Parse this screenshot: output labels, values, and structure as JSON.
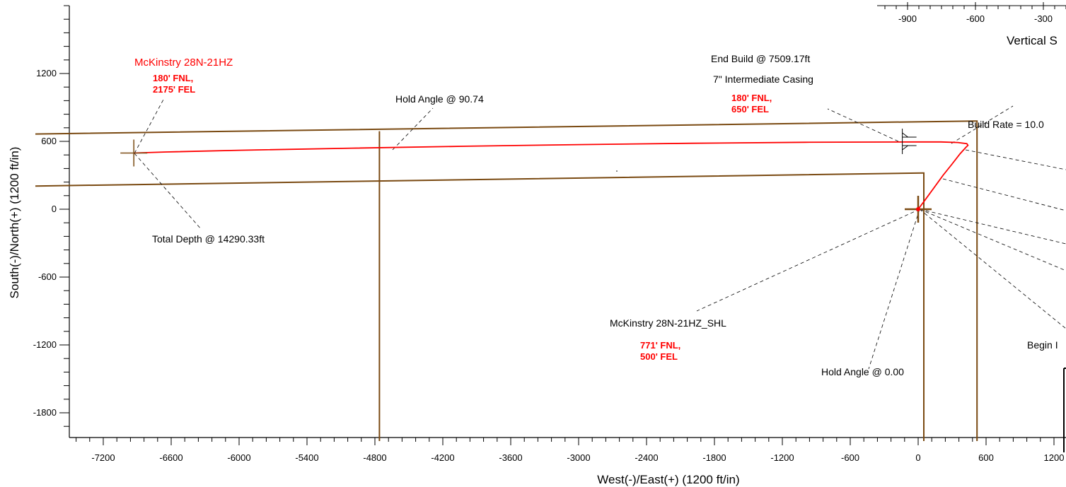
{
  "chart_data": {
    "type": "line",
    "title": "",
    "xlabel": "West(-)/East(+) (1200 ft/in)",
    "ylabel": "South(-)/North(+) (1200 ft/in)",
    "xlim": [
      -7800,
      1250
    ],
    "ylim": [
      -2050,
      1800
    ],
    "x_ticks": [
      -7200,
      -6600,
      -6000,
      -5400,
      -4800,
      -4200,
      -3600,
      -3000,
      -2400,
      -1800,
      -1200,
      -600,
      0,
      600,
      1200
    ],
    "y_ticks": [
      1200,
      600,
      0,
      -600,
      -1200,
      -1800
    ],
    "top_axis": {
      "label": "Vertical S",
      "ticks": [
        "-900",
        "-600",
        "-300"
      ]
    },
    "colors": {
      "wellpath": "#ff0000",
      "boundary": "#7a4a12",
      "target": "#ff0000",
      "text": "#000000"
    },
    "series": [
      {
        "type": "wellpath",
        "x": [
          0,
          60,
          140,
          220,
          300,
          370,
          420,
          440,
          430,
          350,
          200,
          0,
          -1000,
          -2000,
          -3000,
          -4000,
          -5000,
          -6000,
          -6640,
          -6930
        ],
        "y": [
          0,
          80,
          190,
          300,
          400,
          490,
          545,
          565,
          580,
          590,
          595,
          595,
          592,
          583,
          571,
          557,
          540,
          521,
          506,
          497
        ]
      },
      {
        "type": "boundary",
        "segments": [
          {
            "x": [
              -7800,
              500,
              520,
              520
            ],
            "y": [
              665,
              780,
              780,
              -2050
            ]
          },
          {
            "x": [
              -7800,
              40,
              50,
              50
            ],
            "y": [
              205,
              320,
              320,
              -2050
            ]
          },
          {
            "x": [
              -4760,
              -4760,
              -4760
            ],
            "y": [
              690,
              255,
              -2050
            ]
          }
        ]
      }
    ],
    "markers": [
      {
        "name": "mckinstry-target-marker",
        "x": -6930,
        "y": 497
      },
      {
        "name": "shl-marker",
        "x": 0,
        "y": 0
      },
      {
        "name": "casing-marker",
        "x": -140,
        "y": 600
      }
    ],
    "annotations": {
      "target_name": "McKinstry 28N-21HZ",
      "target_loc_1": "180' FNL,",
      "target_loc_2": "2175' FEL",
      "total_depth": "Total Depth @ 14290.33ft",
      "hold_angle_upper": "Hold Angle @ 90.74",
      "end_build": "End Build @ 7509.17ft",
      "intermediate_casing": "7\" Intermediate Casing",
      "casing_loc_1": "180' FNL,",
      "casing_loc_2": "650' FEL",
      "build_rate": "Build Rate = 10.0",
      "shl_name": "McKinstry 28N-21HZ_SHL",
      "shl_loc_1": "771' FNL,",
      "shl_loc_2": "500' FEL",
      "hold_angle_lower": "Hold Angle @ 0.00",
      "begin": "Begin I"
    }
  }
}
